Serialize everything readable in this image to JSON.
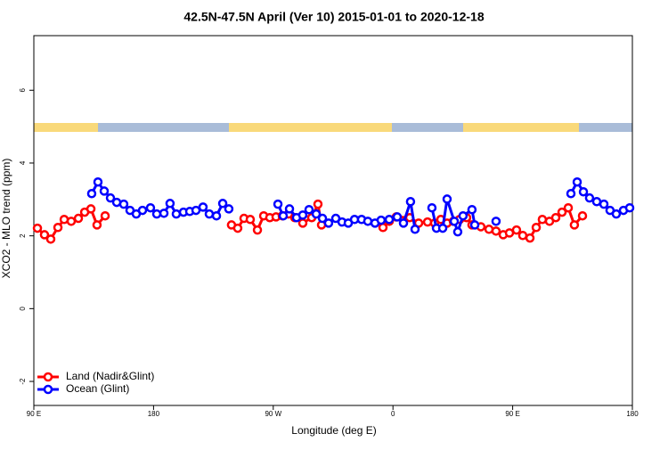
{
  "chart_data": {
    "type": "line",
    "title": "42.5N-47.5N April (Ver 10)   2015-01-01 to 2020-12-18",
    "x_label": "Longitude (deg E)",
    "y_label": "XCO2 - MLO trend (ppm)",
    "xlim": [
      90,
      540
    ],
    "ylim": [
      -2.66,
      7.5
    ],
    "xticks": [
      {
        "value": 90,
        "label": "90 E"
      },
      180,
      {
        "value": 270,
        "label": "90 W"
      },
      {
        "value": 360,
        "label": "0"
      },
      {
        "value": 450,
        "label": "90 E"
      },
      {
        "value": 540,
        "label": "180"
      }
    ],
    "yticks": [
      -2,
      0,
      2,
      4,
      6
    ],
    "legend": "bottom-left",
    "series": [
      {
        "name": "Land (Nadir&Glint)",
        "color": "#ff0000",
        "x": [
          92.7,
          98.0,
          102.7,
          108.1,
          112.8,
          118.1,
          123.5,
          128.2,
          132.9,
          137.5,
          143.6,
          null,
          238.6,
          243.3,
          248.0,
          252.7,
          258.1,
          262.8,
          267.4,
          272.1,
          276.8,
          281.5,
          286.2,
          292.2,
          298.9,
          303.6,
          306.3,
          null,
          352.5,
          357.2,
          362.5,
          372.6,
          379.3,
          386.0,
          391.3,
          396.0,
          400.7,
          405.4,
          410.1,
          415.4,
          419.4,
          426.1,
          432.2,
          437.5,
          442.9,
          447.6,
          452.9,
          457.6,
          463.0,
          467.7,
          472.3,
          477.7,
          482.4,
          487.1,
          491.8,
          496.4,
          502.5
        ],
        "values": [
          2.21,
          2.03,
          1.91,
          2.23,
          2.45,
          2.4,
          2.48,
          2.65,
          2.74,
          2.3,
          2.55,
          null,
          2.3,
          2.21,
          2.48,
          2.45,
          2.16,
          2.55,
          2.5,
          2.52,
          2.55,
          2.6,
          2.5,
          2.35,
          2.5,
          2.87,
          2.3,
          null,
          2.23,
          2.4,
          2.52,
          2.5,
          2.35,
          2.38,
          2.35,
          2.45,
          2.35,
          2.4,
          2.45,
          2.5,
          2.3,
          2.25,
          2.18,
          2.13,
          2.03,
          2.08,
          2.16,
          2.01,
          1.94,
          2.23,
          2.45,
          2.4,
          2.5,
          2.65,
          2.77,
          2.3,
          2.55
        ]
      },
      {
        "name": "Ocean (Glint)",
        "color": "#0000ff",
        "x": [
          133.5,
          138.2,
          142.9,
          147.6,
          152.3,
          157.6,
          162.3,
          167.0,
          171.7,
          177.7,
          182.4,
          187.8,
          192.4,
          197.1,
          202.5,
          207.2,
          211.9,
          217.2,
          221.9,
          227.3,
          232.0,
          236.6,
          null,
          273.5,
          277.5,
          282.2,
          287.5,
          292.2,
          296.9,
          302.3,
          307.0,
          311.6,
          317.0,
          321.7,
          326.4,
          331.1,
          336.4,
          341.1,
          346.5,
          351.1,
          357.2,
          363.2,
          367.9,
          373.2,
          376.6,
          null,
          389.3,
          392.7,
          397.4,
          400.7,
          406.1,
          408.7,
          412.7,
          419.4,
          421.5,
          null,
          437.5,
          null,
          493.8,
          498.5,
          503.2,
          507.8,
          513.2,
          518.6,
          523.2,
          527.9,
          533.3,
          538.0
        ],
        "values": [
          3.16,
          3.48,
          3.23,
          3.04,
          2.92,
          2.87,
          2.7,
          2.6,
          2.7,
          2.77,
          2.6,
          2.62,
          2.89,
          2.6,
          2.65,
          2.67,
          2.7,
          2.79,
          2.6,
          2.55,
          2.89,
          2.74,
          null,
          2.87,
          2.55,
          2.74,
          2.5,
          2.57,
          2.72,
          2.6,
          2.48,
          2.35,
          2.48,
          2.38,
          2.35,
          2.45,
          2.45,
          2.4,
          2.35,
          2.43,
          2.45,
          2.52,
          2.35,
          2.94,
          2.18,
          null,
          2.77,
          2.21,
          2.21,
          3.01,
          2.4,
          2.11,
          2.55,
          2.72,
          2.3,
          null,
          2.4,
          null,
          3.16,
          3.48,
          3.21,
          3.04,
          2.94,
          2.87,
          2.7,
          2.6,
          2.7,
          2.77
        ]
      }
    ]
  }
}
